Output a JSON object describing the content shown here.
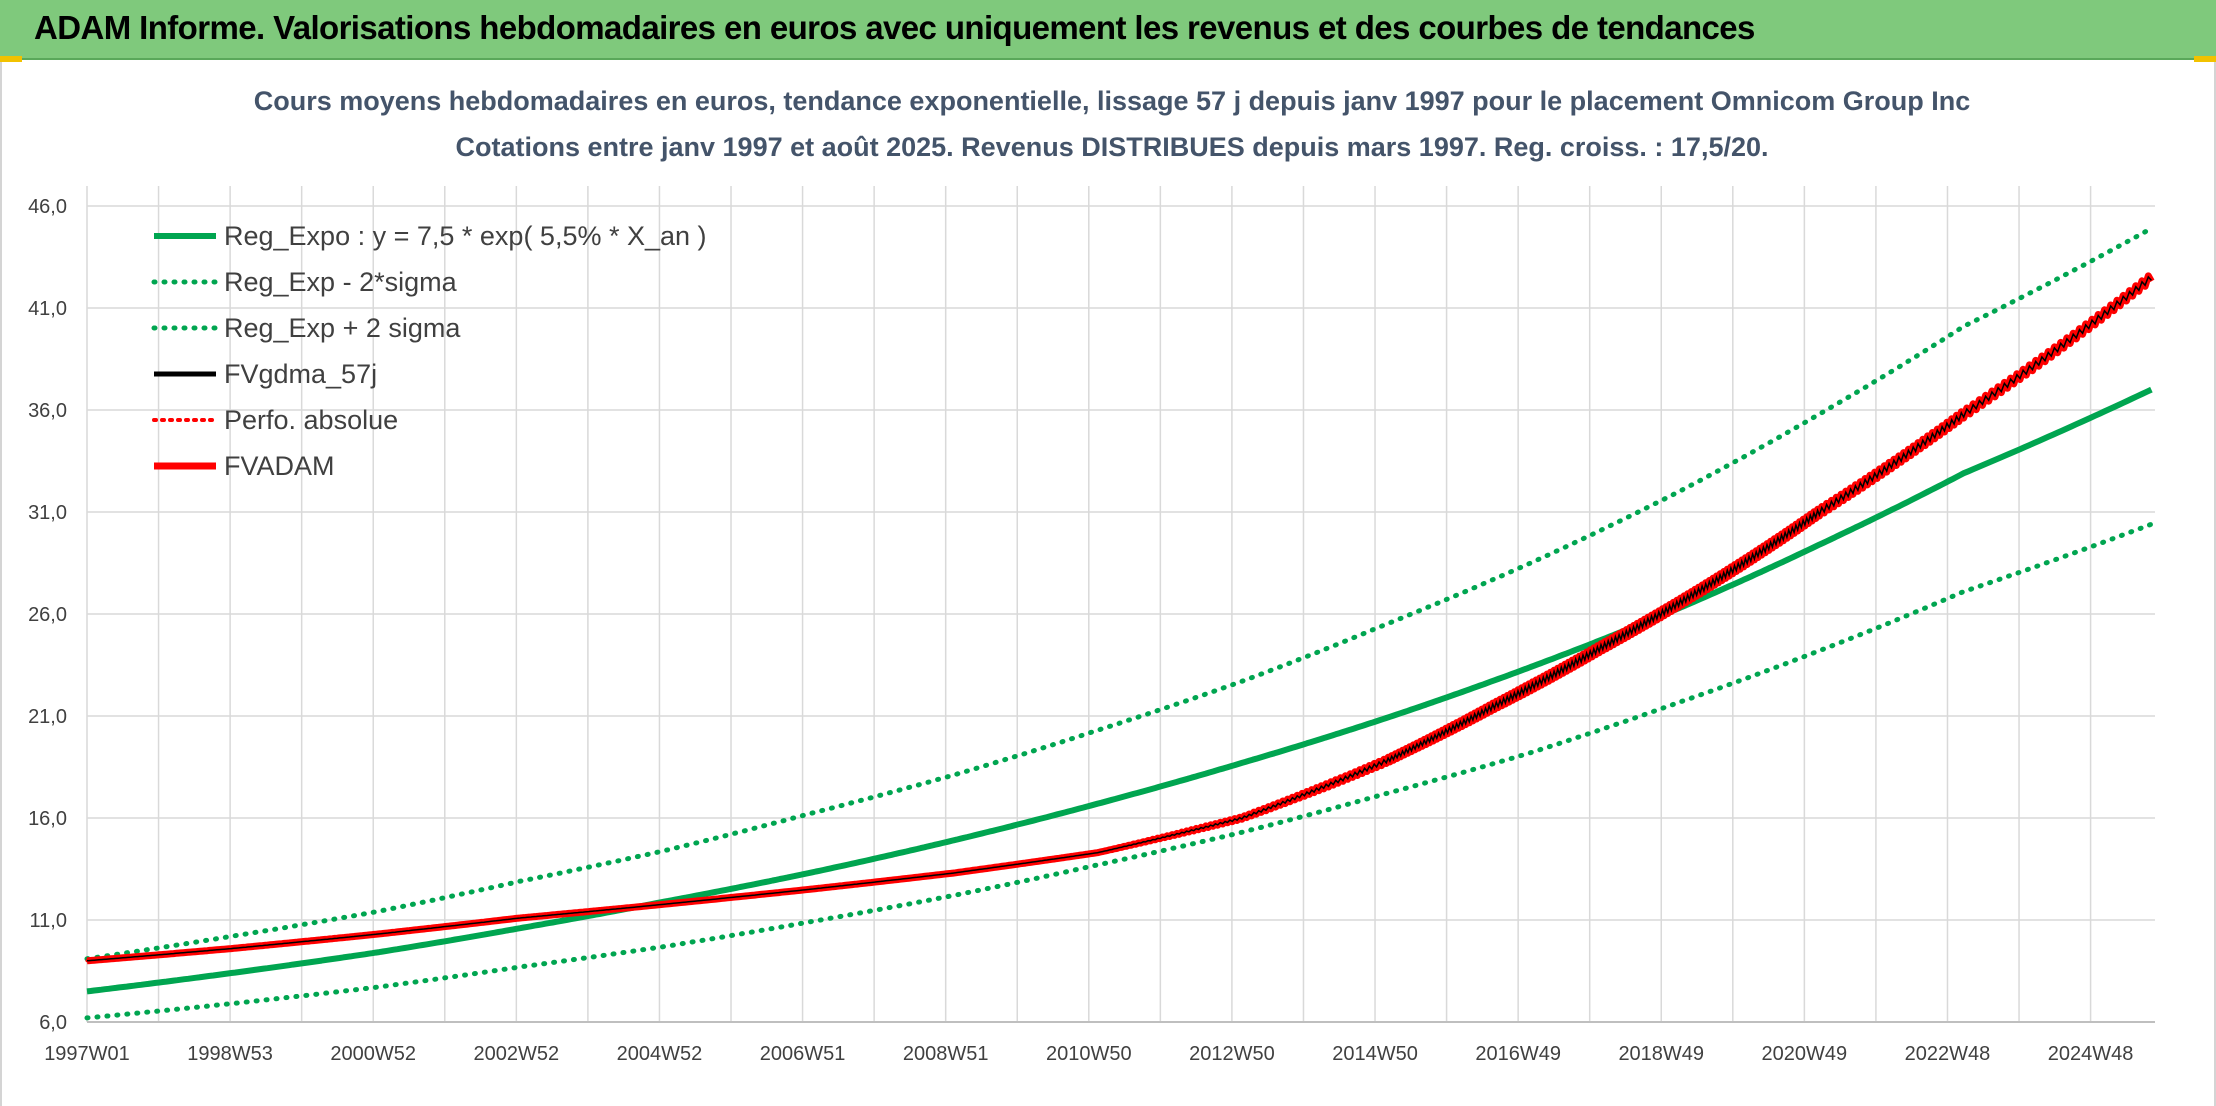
{
  "header": {
    "title": "ADAM Informe. Valorisations hebdomadaires en euros avec uniquement les revenus et des courbes de tendances"
  },
  "chart_data": {
    "type": "line",
    "title": "Cours moyens hebdomadaires en euros, tendance exponentielle, lissage 57 j depuis janv 1997 pour le placement Omnicom Group Inc",
    "subtitle": "Cotations entre janv 1997 et août 2025. Revenus DISTRIBUES depuis mars 1997. Reg. croiss. : 17,5/20.",
    "x_tick_labels": [
      "1997W01",
      "1998W53",
      "2000W52",
      "2002W52",
      "2004W52",
      "2006W51",
      "2008W51",
      "2010W50",
      "2012W50",
      "2014W50",
      "2016W49",
      "2018W49",
      "2020W49",
      "2022W48",
      "2024W48"
    ],
    "y_tick_labels": [
      "6,0",
      "11,0",
      "16,0",
      "21,0",
      "26,0",
      "31,0",
      "36,0",
      "41,0",
      "46,0"
    ],
    "ylim": [
      6,
      46
    ],
    "xlim": [
      1997.0,
      2025.65
    ],
    "grid": true,
    "legend_position": "top-left",
    "series": [
      {
        "name": "Reg_Expo : y = 7,5 * exp( 5,5% *  X_an )",
        "color": "#00a550",
        "style": "solid",
        "x": [
          1997.0,
          1999.0,
          2001.0,
          2003.0,
          2005.0,
          2007.0,
          2009.0,
          2011.0,
          2013.0,
          2015.0,
          2017.0,
          2019.0,
          2021.0,
          2023.0,
          2025.6
        ],
        "y": [
          7.5,
          8.4,
          9.4,
          10.6,
          11.9,
          13.3,
          14.9,
          16.7,
          18.7,
          20.9,
          23.4,
          26.2,
          29.4,
          32.9,
          37.0
        ]
      },
      {
        "name": "Reg_Exp - 2*sigma",
        "color": "#00a550",
        "style": "dotted",
        "x": [
          1997.0,
          1999.0,
          2001.0,
          2003.0,
          2005.0,
          2007.0,
          2009.0,
          2011.0,
          2013.0,
          2015.0,
          2017.0,
          2019.0,
          2021.0,
          2023.0,
          2025.6
        ],
        "y": [
          6.2,
          6.9,
          7.7,
          8.7,
          9.7,
          10.9,
          12.2,
          13.7,
          15.3,
          17.2,
          19.2,
          21.6,
          24.2,
          27.1,
          30.4
        ]
      },
      {
        "name": "Reg_Exp + 2 sigma",
        "color": "#00a550",
        "style": "dotted",
        "x": [
          1997.0,
          1999.0,
          2001.0,
          2003.0,
          2005.0,
          2007.0,
          2009.0,
          2011.0,
          2013.0,
          2015.0,
          2017.0,
          2019.0,
          2021.0,
          2023.0,
          2025.6
        ],
        "y": [
          9.1,
          10.2,
          11.4,
          12.9,
          14.4,
          16.2,
          18.1,
          20.3,
          22.7,
          25.5,
          28.5,
          31.9,
          35.8,
          40.1,
          44.9
        ]
      },
      {
        "name": "FVgdma_57j",
        "color": "#000000",
        "style": "solid",
        "x": [
          1997.0,
          1999.0,
          2001.0,
          2003.0,
          2004.5,
          2007.0,
          2009.0,
          2011.0,
          2013.0,
          2015.0,
          2016.5,
          2018.0,
          2019.5,
          2021.0,
          2023.0,
          2025.6
        ],
        "y": [
          9.0,
          9.6,
          10.3,
          11.1,
          11.6,
          12.5,
          13.3,
          14.3,
          16.0,
          18.8,
          21.5,
          24.4,
          27.5,
          31.0,
          35.8,
          42.5
        ]
      },
      {
        "name": "Perfo. absolue",
        "color": "#ff0000",
        "style": "dotted",
        "x": [
          1997.0,
          1999.0,
          2001.0,
          2003.0,
          2004.5,
          2007.0,
          2009.0,
          2011.0,
          2013.0,
          2015.0,
          2016.5,
          2018.0,
          2019.5,
          2021.0,
          2023.0,
          2025.6
        ],
        "y": [
          9.0,
          9.6,
          10.3,
          11.1,
          11.6,
          12.5,
          13.3,
          14.3,
          16.0,
          18.8,
          21.5,
          24.4,
          27.5,
          31.0,
          35.8,
          42.5
        ]
      },
      {
        "name": "FVADAM",
        "color": "#ff0000",
        "style": "solid",
        "x": [
          1997.0,
          1999.0,
          2001.0,
          2003.0,
          2004.5,
          2007.0,
          2009.0,
          2011.0,
          2013.0,
          2015.0,
          2016.5,
          2018.0,
          2019.5,
          2021.0,
          2023.0,
          2025.6
        ],
        "y": [
          9.0,
          9.6,
          10.3,
          11.1,
          11.6,
          12.5,
          13.3,
          14.3,
          16.0,
          18.8,
          21.5,
          24.4,
          27.5,
          31.0,
          35.8,
          42.5
        ]
      }
    ]
  }
}
